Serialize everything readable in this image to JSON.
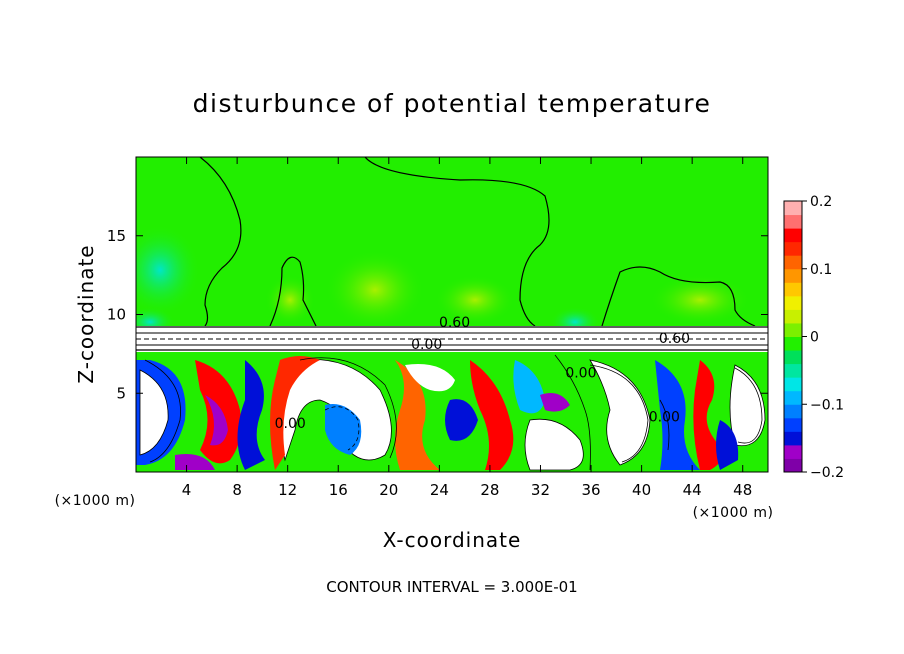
{
  "chart_data": {
    "type": "heatmap",
    "title": "disturbunce of potential temperature",
    "xlabel": "X-coordinate",
    "ylabel": "Z-coordinate",
    "x_unit": "(×1000 m)",
    "y_unit_label": "(×1000 m)",
    "xlim": [
      0,
      50
    ],
    "ylim": [
      0,
      20
    ],
    "x_ticks": [
      4,
      8,
      12,
      16,
      20,
      24,
      28,
      32,
      36,
      40,
      44,
      48
    ],
    "y_ticks": [
      5,
      10,
      15
    ],
    "contour_interval_text": "CONTOUR INTERVAL = 3.000E-01",
    "contour_labels": [
      {
        "text": "0.60",
        "x": 25.2,
        "z": 9.2
      },
      {
        "text": "0.00",
        "x": 23.0,
        "z": 7.8
      },
      {
        "text": "0.60",
        "x": 42.6,
        "z": 8.2
      },
      {
        "text": "0.00",
        "x": 12.2,
        "z": 2.8
      },
      {
        "text": "0.00",
        "x": 35.2,
        "z": 6.0
      },
      {
        "text": "0.00",
        "x": 41.8,
        "z": 3.2
      }
    ],
    "colorbar": {
      "min": -0.2,
      "max": 0.2,
      "ticks": [
        {
          "value": 0.2,
          "label": "0.2"
        },
        {
          "value": 0.1,
          "label": "0.1"
        },
        {
          "value": 0,
          "label": "0"
        },
        {
          "value": -0.1,
          "label": "−0.1"
        },
        {
          "value": -0.2,
          "label": "−0.2"
        }
      ],
      "colors": [
        "#7f00a8",
        "#a000c8",
        "#0010d8",
        "#0040ff",
        "#0080ff",
        "#00b8ff",
        "#00e6e6",
        "#00e6a0",
        "#00e05a",
        "#22f000",
        "#7cf000",
        "#c8f000",
        "#f0f000",
        "#ffc800",
        "#ff9600",
        "#ff6400",
        "#ff2800",
        "#ff0000",
        "#ff7070",
        "#ffb0b0"
      ]
    },
    "upper_region_value": 0.02,
    "lower_turbulent_range": [
      -0.2,
      0.2
    ]
  }
}
